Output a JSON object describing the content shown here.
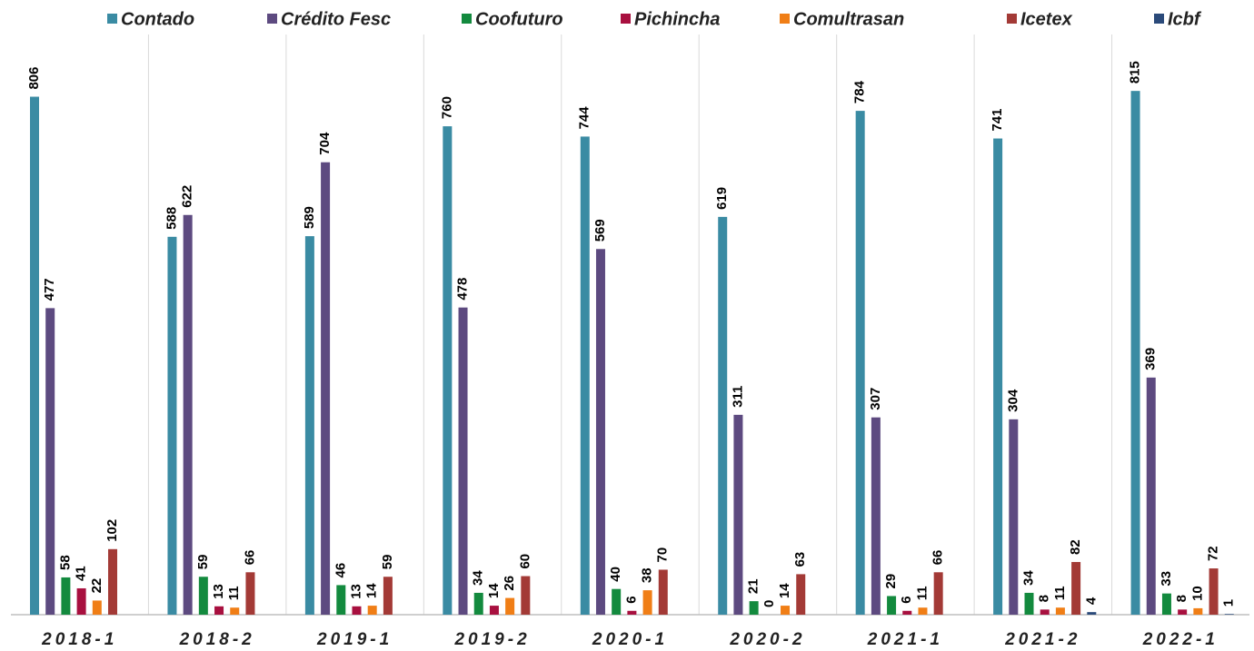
{
  "chart_data": {
    "type": "bar",
    "categories": [
      "2018-1",
      "2018-2",
      "2019-1",
      "2019-2",
      "2020-1",
      "2020-2",
      "2021-1",
      "2021-2",
      "2022-1"
    ],
    "series": [
      {
        "name": "Contado",
        "color": "#3a8ba3",
        "values": [
          806,
          588,
          589,
          760,
          744,
          619,
          784,
          741,
          815
        ]
      },
      {
        "name": "Crédito Fesc",
        "color": "#5d4a80",
        "values": [
          477,
          622,
          704,
          478,
          569,
          311,
          307,
          304,
          369
        ]
      },
      {
        "name": "Coofuturo",
        "color": "#138a3e",
        "values": [
          58,
          59,
          46,
          34,
          40,
          21,
          29,
          34,
          33
        ]
      },
      {
        "name": "Pichincha",
        "color": "#a8103f",
        "values": [
          41,
          13,
          13,
          14,
          6,
          0,
          6,
          8,
          8
        ]
      },
      {
        "name": "Comultrasan",
        "color": "#f07e16",
        "values": [
          22,
          11,
          14,
          26,
          38,
          14,
          11,
          11,
          10
        ]
      },
      {
        "name": "Icetex",
        "color": "#a33a36",
        "values": [
          102,
          66,
          59,
          60,
          70,
          63,
          66,
          82,
          72
        ]
      },
      {
        "name": "Icbf",
        "color": "#2b4a7a",
        "values": [
          null,
          null,
          null,
          null,
          null,
          null,
          null,
          4,
          1
        ]
      }
    ],
    "ylim": [
      0,
      900
    ]
  }
}
